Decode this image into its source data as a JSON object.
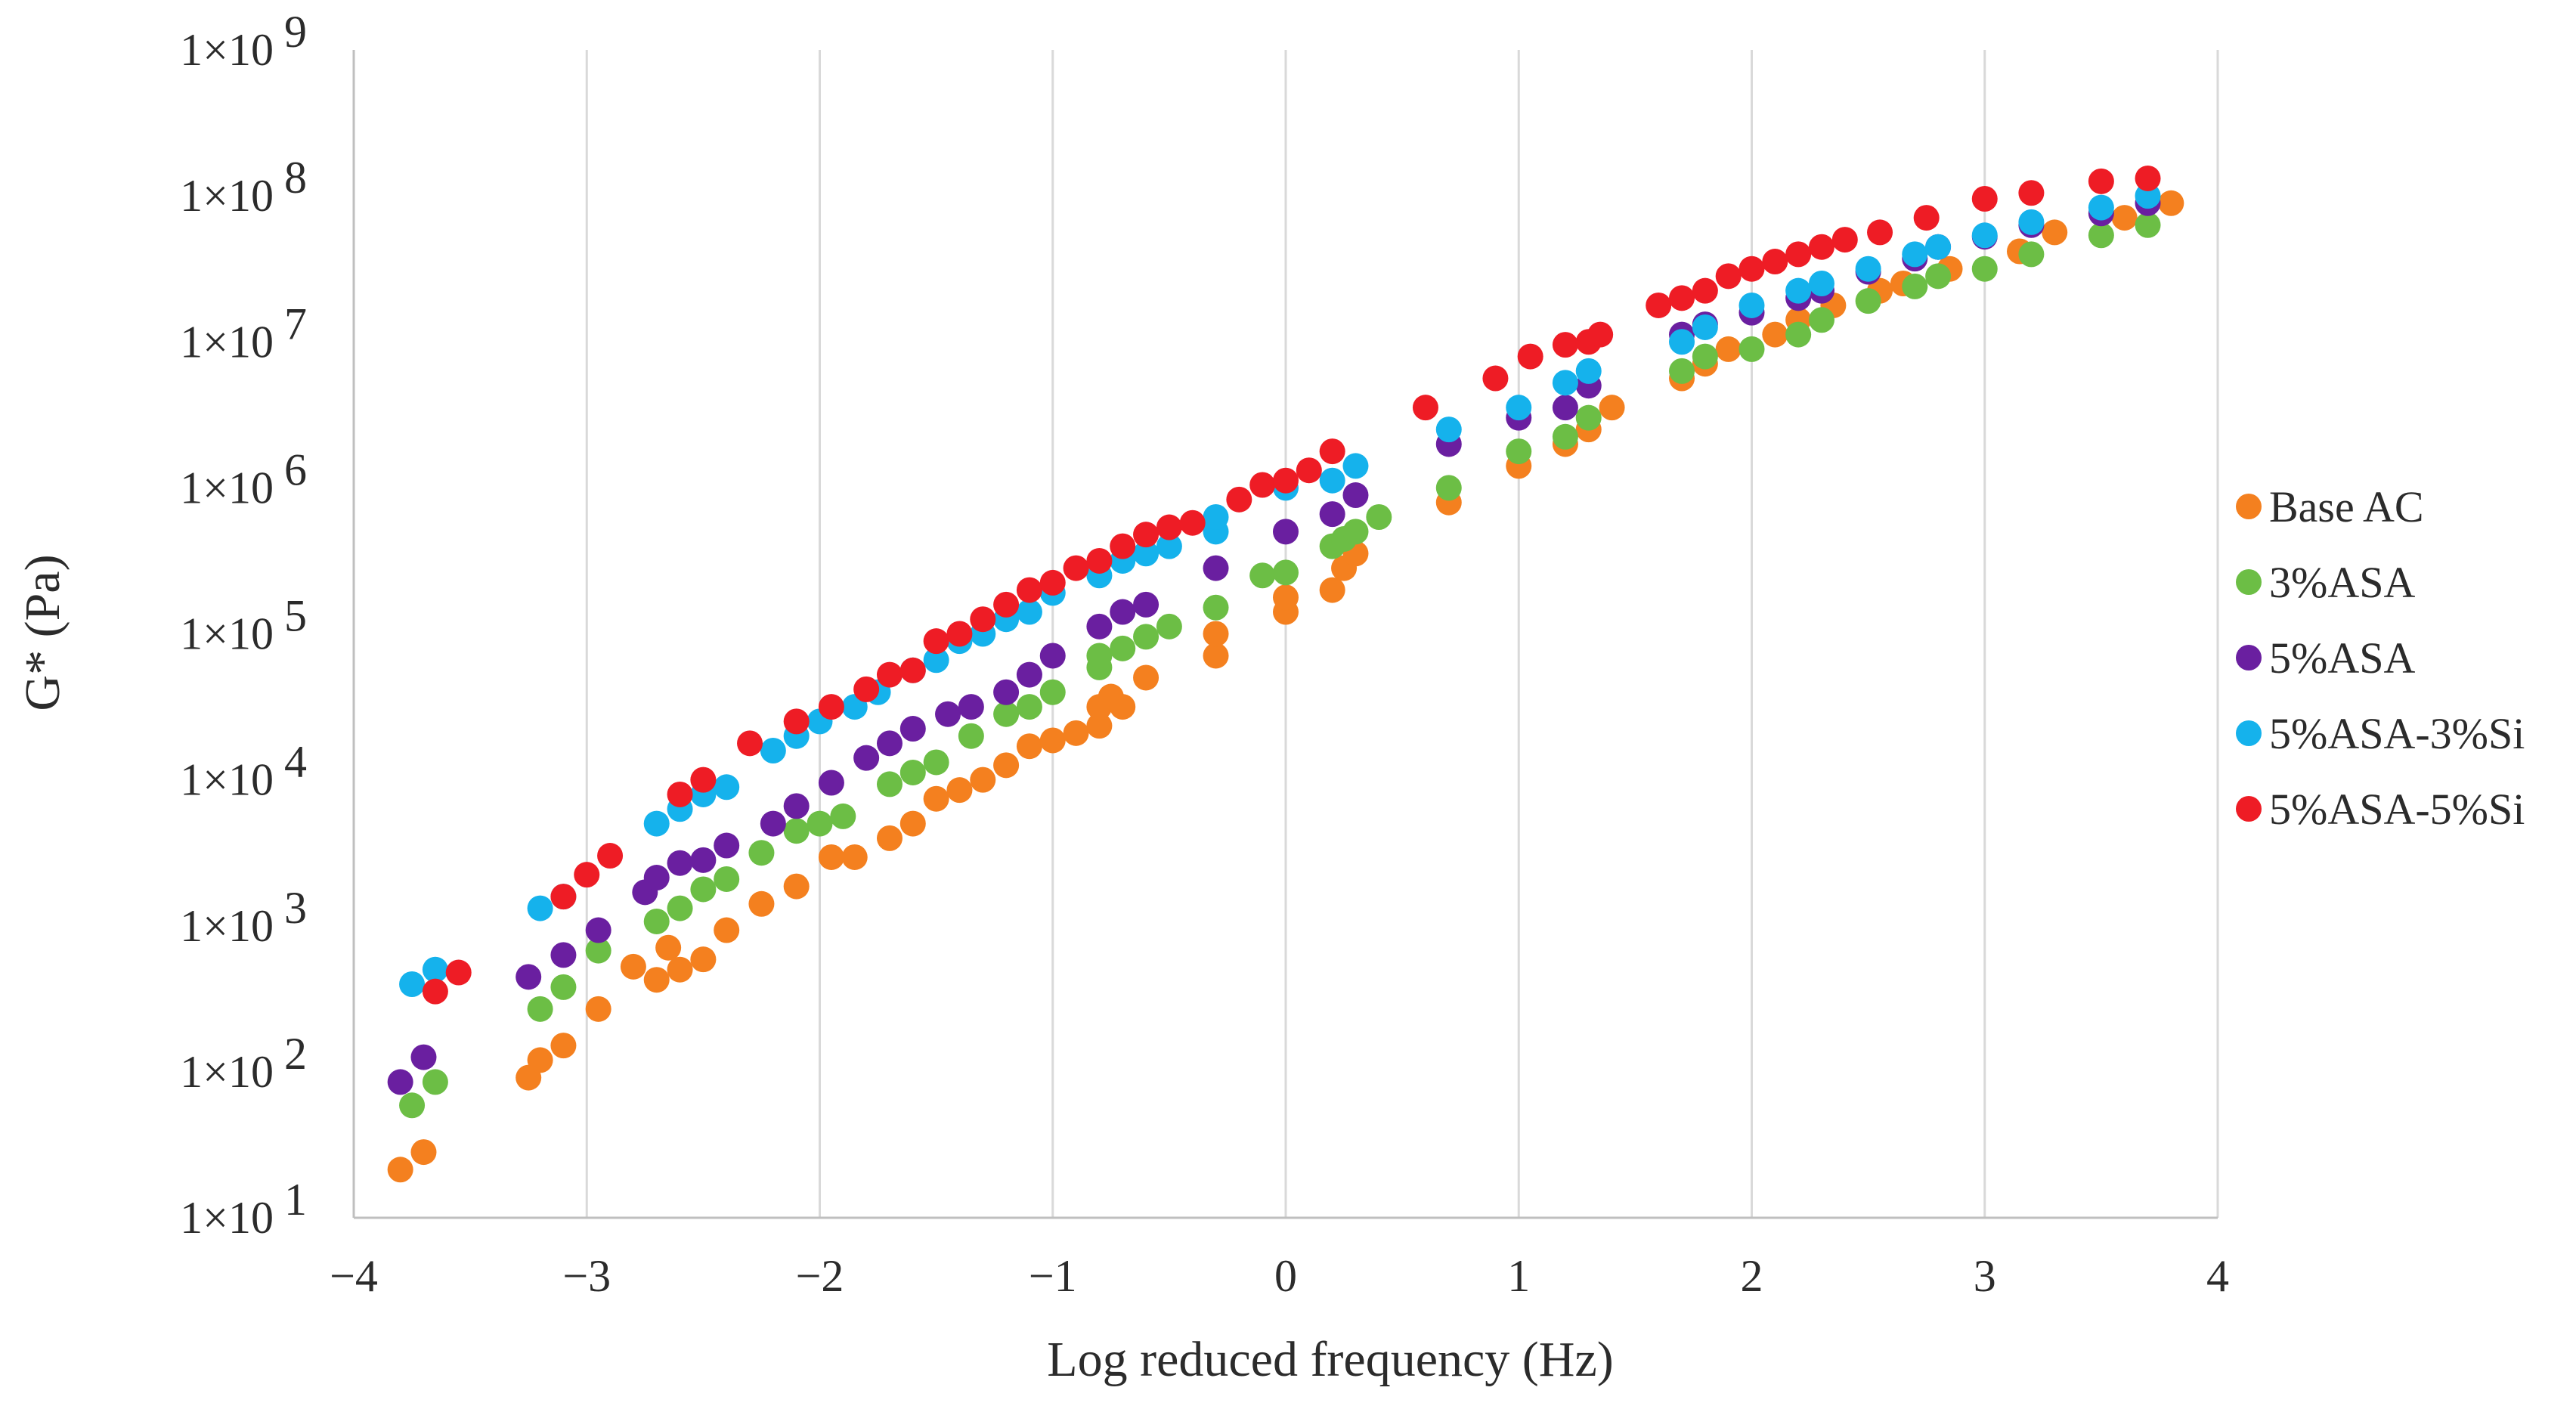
{
  "chart_data": {
    "type": "scatter",
    "title": "",
    "xlabel": "Log reduced frequency (Hz)",
    "ylabel": "G* (Pa)",
    "xlim": [
      -4,
      4
    ],
    "ylim_log10": [
      1,
      9
    ],
    "y_scale": "log",
    "grid": "vertical",
    "legend_position": "right",
    "x_ticks": [
      {
        "value": -4,
        "label": "−4"
      },
      {
        "value": -3,
        "label": "−3"
      },
      {
        "value": -2,
        "label": "−2"
      },
      {
        "value": -1,
        "label": "−1"
      },
      {
        "value": 0,
        "label": "0"
      },
      {
        "value": 1,
        "label": "1"
      },
      {
        "value": 2,
        "label": "2"
      },
      {
        "value": 3,
        "label": "3"
      },
      {
        "value": 4,
        "label": "4"
      }
    ],
    "y_ticks": [
      {
        "exp": 1,
        "base": "1×10",
        "sup": "1"
      },
      {
        "exp": 2,
        "base": "1×10",
        "sup": "2"
      },
      {
        "exp": 3,
        "base": "1×10",
        "sup": "3"
      },
      {
        "exp": 4,
        "base": "1×10",
        "sup": "4"
      },
      {
        "exp": 5,
        "base": "1×10",
        "sup": "5"
      },
      {
        "exp": 6,
        "base": "1×10",
        "sup": "6"
      },
      {
        "exp": 7,
        "base": "1×10",
        "sup": "7"
      },
      {
        "exp": 8,
        "base": "1×10",
        "sup": "8"
      },
      {
        "exp": 9,
        "base": "1×10",
        "sup": "9"
      }
    ],
    "series": [
      {
        "name": "Base AC",
        "color": "#F4801F",
        "points": [
          [
            -3.8,
            1.33
          ],
          [
            -3.7,
            1.45
          ],
          [
            -3.25,
            1.96
          ],
          [
            -3.2,
            2.08
          ],
          [
            -3.1,
            2.18
          ],
          [
            -2.95,
            2.43
          ],
          [
            -2.8,
            2.72
          ],
          [
            -2.7,
            2.63
          ],
          [
            -2.65,
            2.85
          ],
          [
            -2.6,
            2.7
          ],
          [
            -2.5,
            2.77
          ],
          [
            -2.4,
            2.97
          ],
          [
            -2.25,
            3.15
          ],
          [
            -2.1,
            3.27
          ],
          [
            -1.95,
            3.47
          ],
          [
            -1.85,
            3.47
          ],
          [
            -1.7,
            3.6
          ],
          [
            -1.6,
            3.7
          ],
          [
            -1.5,
            3.87
          ],
          [
            -1.4,
            3.93
          ],
          [
            -1.3,
            4.0
          ],
          [
            -1.2,
            4.1
          ],
          [
            -1.1,
            4.23
          ],
          [
            -1.0,
            4.27
          ],
          [
            -0.9,
            4.32
          ],
          [
            -0.8,
            4.37
          ],
          [
            -0.8,
            4.5
          ],
          [
            -0.75,
            4.57
          ],
          [
            -0.7,
            4.5
          ],
          [
            -0.6,
            4.7
          ],
          [
            -0.3,
            4.85
          ],
          [
            -0.3,
            5.0
          ],
          [
            0.0,
            5.15
          ],
          [
            0.0,
            5.25
          ],
          [
            0.2,
            5.3
          ],
          [
            0.25,
            5.45
          ],
          [
            0.3,
            5.55
          ],
          [
            0.7,
            5.9
          ],
          [
            1.0,
            6.15
          ],
          [
            1.2,
            6.3
          ],
          [
            1.3,
            6.4
          ],
          [
            1.4,
            6.55
          ],
          [
            1.7,
            6.75
          ],
          [
            1.8,
            6.85
          ],
          [
            1.9,
            6.95
          ],
          [
            2.1,
            7.05
          ],
          [
            2.2,
            7.15
          ],
          [
            2.35,
            7.25
          ],
          [
            2.55,
            7.35
          ],
          [
            2.65,
            7.4
          ],
          [
            2.85,
            7.5
          ],
          [
            3.15,
            7.62
          ],
          [
            3.3,
            7.75
          ],
          [
            3.6,
            7.85
          ],
          [
            3.8,
            7.95
          ]
        ]
      },
      {
        "name": "3%ASA",
        "color": "#6CBE45",
        "points": [
          [
            -3.75,
            1.77
          ],
          [
            -3.65,
            1.93
          ],
          [
            -3.2,
            2.43
          ],
          [
            -3.1,
            2.58
          ],
          [
            -2.95,
            2.83
          ],
          [
            -2.7,
            3.03
          ],
          [
            -2.6,
            3.12
          ],
          [
            -2.5,
            3.25
          ],
          [
            -2.4,
            3.32
          ],
          [
            -2.25,
            3.5
          ],
          [
            -2.1,
            3.65
          ],
          [
            -2.0,
            3.7
          ],
          [
            -1.9,
            3.75
          ],
          [
            -1.7,
            3.97
          ],
          [
            -1.6,
            4.05
          ],
          [
            -1.5,
            4.12
          ],
          [
            -1.35,
            4.3
          ],
          [
            -1.2,
            4.45
          ],
          [
            -1.1,
            4.5
          ],
          [
            -1.0,
            4.6
          ],
          [
            -0.8,
            4.77
          ],
          [
            -0.8,
            4.85
          ],
          [
            -0.7,
            4.9
          ],
          [
            -0.6,
            4.98
          ],
          [
            -0.5,
            5.05
          ],
          [
            -0.3,
            5.18
          ],
          [
            -0.1,
            5.4
          ],
          [
            0.0,
            5.42
          ],
          [
            0.2,
            5.6
          ],
          [
            0.25,
            5.65
          ],
          [
            0.3,
            5.7
          ],
          [
            0.4,
            5.8
          ],
          [
            0.7,
            6.0
          ],
          [
            1.0,
            6.25
          ],
          [
            1.2,
            6.35
          ],
          [
            1.3,
            6.48
          ],
          [
            1.7,
            6.8
          ],
          [
            1.8,
            6.9
          ],
          [
            2.0,
            6.95
          ],
          [
            2.2,
            7.05
          ],
          [
            2.3,
            7.15
          ],
          [
            2.5,
            7.28
          ],
          [
            2.7,
            7.38
          ],
          [
            2.8,
            7.45
          ],
          [
            3.0,
            7.5
          ],
          [
            3.2,
            7.6
          ],
          [
            3.5,
            7.73
          ],
          [
            3.7,
            7.8
          ]
        ]
      },
      {
        "name": "5%ASA",
        "color": "#6A1FA0",
        "points": [
          [
            -3.8,
            1.93
          ],
          [
            -3.7,
            2.1
          ],
          [
            -3.25,
            2.65
          ],
          [
            -3.1,
            2.8
          ],
          [
            -2.95,
            2.97
          ],
          [
            -2.75,
            3.23
          ],
          [
            -2.7,
            3.33
          ],
          [
            -2.6,
            3.43
          ],
          [
            -2.5,
            3.45
          ],
          [
            -2.4,
            3.55
          ],
          [
            -2.2,
            3.7
          ],
          [
            -2.1,
            3.82
          ],
          [
            -1.95,
            3.98
          ],
          [
            -1.8,
            4.15
          ],
          [
            -1.7,
            4.25
          ],
          [
            -1.6,
            4.35
          ],
          [
            -1.45,
            4.45
          ],
          [
            -1.35,
            4.5
          ],
          [
            -1.2,
            4.6
          ],
          [
            -1.1,
            4.72
          ],
          [
            -1.0,
            4.85
          ],
          [
            -0.8,
            5.05
          ],
          [
            -0.7,
            5.15
          ],
          [
            -0.6,
            5.2
          ],
          [
            -0.3,
            5.45
          ],
          [
            0.0,
            5.7
          ],
          [
            0.2,
            5.82
          ],
          [
            0.3,
            5.95
          ],
          [
            0.7,
            6.3
          ],
          [
            1.0,
            6.48
          ],
          [
            1.2,
            6.55
          ],
          [
            1.3,
            6.7
          ],
          [
            1.7,
            7.05
          ],
          [
            1.8,
            7.12
          ],
          [
            2.0,
            7.2
          ],
          [
            2.2,
            7.3
          ],
          [
            2.3,
            7.35
          ],
          [
            2.5,
            7.48
          ],
          [
            2.7,
            7.57
          ],
          [
            2.8,
            7.65
          ],
          [
            3.0,
            7.72
          ],
          [
            3.2,
            7.8
          ],
          [
            3.5,
            7.88
          ],
          [
            3.7,
            7.95
          ]
        ]
      },
      {
        "name": "5%ASA-3%Si",
        "color": "#15B2EC",
        "points": [
          [
            -3.75,
            2.6
          ],
          [
            -3.65,
            2.7
          ],
          [
            -3.2,
            3.12
          ],
          [
            -3.1,
            3.2
          ],
          [
            -2.7,
            3.7
          ],
          [
            -2.6,
            3.8
          ],
          [
            -2.5,
            3.9
          ],
          [
            -2.4,
            3.95
          ],
          [
            -2.2,
            4.2
          ],
          [
            -2.1,
            4.3
          ],
          [
            -2.0,
            4.4
          ],
          [
            -1.85,
            4.5
          ],
          [
            -1.75,
            4.6
          ],
          [
            -1.6,
            4.75
          ],
          [
            -1.5,
            4.82
          ],
          [
            -1.4,
            4.95
          ],
          [
            -1.3,
            5.0
          ],
          [
            -1.2,
            5.1
          ],
          [
            -1.1,
            5.15
          ],
          [
            -1.0,
            5.28
          ],
          [
            -0.8,
            5.4
          ],
          [
            -0.7,
            5.5
          ],
          [
            -0.6,
            5.55
          ],
          [
            -0.5,
            5.6
          ],
          [
            -0.3,
            5.7
          ],
          [
            -0.3,
            5.8
          ],
          [
            0.0,
            6.0
          ],
          [
            0.2,
            6.05
          ],
          [
            0.3,
            6.15
          ],
          [
            0.7,
            6.4
          ],
          [
            1.0,
            6.55
          ],
          [
            1.2,
            6.72
          ],
          [
            1.3,
            6.8
          ],
          [
            1.7,
            7.0
          ],
          [
            1.8,
            7.1
          ],
          [
            2.0,
            7.25
          ],
          [
            2.2,
            7.35
          ],
          [
            2.3,
            7.4
          ],
          [
            2.5,
            7.5
          ],
          [
            2.7,
            7.6
          ],
          [
            2.8,
            7.65
          ],
          [
            3.0,
            7.73
          ],
          [
            3.2,
            7.82
          ],
          [
            3.5,
            7.92
          ],
          [
            3.7,
            8.0
          ]
        ]
      },
      {
        "name": "5%ASA-5%Si",
        "color": "#EE1C25",
        "points": [
          [
            -3.65,
            2.55
          ],
          [
            -3.55,
            2.68
          ],
          [
            -3.1,
            3.2
          ],
          [
            -3.0,
            3.35
          ],
          [
            -2.9,
            3.48
          ],
          [
            -2.6,
            3.9
          ],
          [
            -2.5,
            4.0
          ],
          [
            -2.3,
            4.25
          ],
          [
            -2.1,
            4.4
          ],
          [
            -1.95,
            4.5
          ],
          [
            -1.8,
            4.62
          ],
          [
            -1.7,
            4.72
          ],
          [
            -1.6,
            4.75
          ],
          [
            -1.5,
            4.95
          ],
          [
            -1.4,
            5.0
          ],
          [
            -1.3,
            5.1
          ],
          [
            -1.2,
            5.2
          ],
          [
            -1.1,
            5.3
          ],
          [
            -1.0,
            5.35
          ],
          [
            -0.9,
            5.45
          ],
          [
            -0.8,
            5.5
          ],
          [
            -0.7,
            5.6
          ],
          [
            -0.6,
            5.68
          ],
          [
            -0.5,
            5.73
          ],
          [
            -0.4,
            5.76
          ],
          [
            -0.2,
            5.92
          ],
          [
            -0.1,
            6.02
          ],
          [
            0.0,
            6.05
          ],
          [
            0.1,
            6.12
          ],
          [
            0.2,
            6.25
          ],
          [
            0.6,
            6.55
          ],
          [
            0.9,
            6.75
          ],
          [
            1.05,
            6.9
          ],
          [
            1.2,
            6.98
          ],
          [
            1.3,
            7.0
          ],
          [
            1.35,
            7.05
          ],
          [
            1.6,
            7.25
          ],
          [
            1.7,
            7.3
          ],
          [
            1.8,
            7.35
          ],
          [
            1.9,
            7.45
          ],
          [
            2.0,
            7.5
          ],
          [
            2.1,
            7.55
          ],
          [
            2.2,
            7.6
          ],
          [
            2.3,
            7.65
          ],
          [
            2.4,
            7.7
          ],
          [
            2.55,
            7.75
          ],
          [
            2.75,
            7.85
          ],
          [
            3.0,
            7.98
          ],
          [
            3.2,
            8.02
          ],
          [
            3.5,
            8.1
          ],
          [
            3.7,
            8.12
          ]
        ]
      }
    ]
  }
}
